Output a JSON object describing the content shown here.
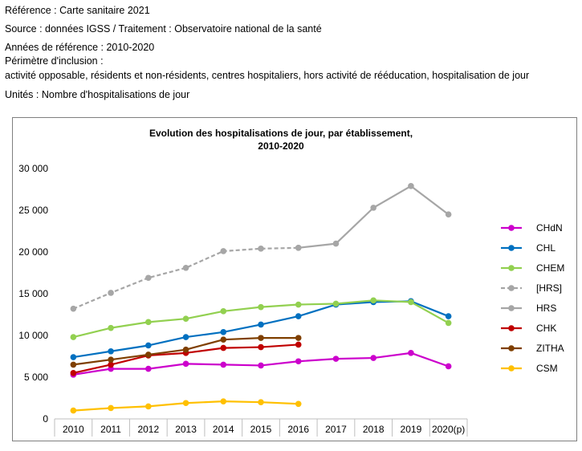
{
  "header": {
    "reference": "Référence : Carte sanitaire 2021",
    "source": "Source : données IGSS / Traitement : Observatoire national de la santé",
    "years": "Années de référence : 2010-2020",
    "perimeter_label": "Périmètre d'inclusion :",
    "perimeter_value": "activité opposable, résidents et non-résidents, centres hospitaliers, hors activité de rééducation, hospitalisation de jour",
    "units": "Unités : Nombre d'hospitalisations de jour"
  },
  "chart_data": {
    "type": "line",
    "title_line1": "Evolution des hospitalisations de jour, par établissement,",
    "title_line2": "2010-2020",
    "x": [
      "2010",
      "2011",
      "2012",
      "2013",
      "2014",
      "2015",
      "2016",
      "2017",
      "2018",
      "2019",
      "2020(p)"
    ],
    "ylim": [
      0,
      30000
    ],
    "yticks": [
      0,
      5000,
      10000,
      15000,
      20000,
      25000,
      30000
    ],
    "ytick_labels": [
      "0",
      "5 000",
      "10 000",
      "15 000",
      "20 000",
      "25 000",
      "30 000"
    ],
    "grid": false,
    "legend_position": "right",
    "series": [
      {
        "name": "CHdN",
        "color": "#CC00CC",
        "dashed": false,
        "values": [
          5300,
          6000,
          6000,
          6600,
          6500,
          6400,
          6900,
          7200,
          7300,
          7900,
          6300
        ]
      },
      {
        "name": "CHL",
        "color": "#0070C0",
        "dashed": false,
        "values": [
          7400,
          8100,
          8800,
          9800,
          10400,
          11300,
          12300,
          13700,
          14000,
          14100,
          12300
        ]
      },
      {
        "name": "CHEM",
        "color": "#92D050",
        "dashed": false,
        "values": [
          9800,
          10900,
          11600,
          12000,
          12900,
          13400,
          13700,
          13800,
          14200,
          14000,
          11500
        ]
      },
      {
        "name": "[HRS]",
        "color": "#A6A6A6",
        "dashed": true,
        "values": [
          13200,
          15100,
          16900,
          18100,
          20100,
          20400,
          20500,
          null,
          null,
          null,
          null
        ]
      },
      {
        "name": "HRS",
        "color": "#A6A6A6",
        "dashed": false,
        "values": [
          null,
          null,
          null,
          null,
          null,
          null,
          20500,
          21000,
          25300,
          27900,
          24500
        ]
      },
      {
        "name": "CHK",
        "color": "#C00000",
        "dashed": false,
        "values": [
          5500,
          6500,
          7600,
          7900,
          8500,
          8600,
          8900,
          null,
          null,
          null,
          null
        ]
      },
      {
        "name": "ZITHA",
        "color": "#7F3F00",
        "dashed": false,
        "values": [
          6500,
          7100,
          7700,
          8300,
          9500,
          9700,
          9700,
          null,
          null,
          null,
          null
        ]
      },
      {
        "name": "CSM",
        "color": "#FFC000",
        "dashed": false,
        "values": [
          1000,
          1300,
          1500,
          1900,
          2100,
          2000,
          1800,
          null,
          null,
          null,
          null
        ]
      }
    ]
  }
}
